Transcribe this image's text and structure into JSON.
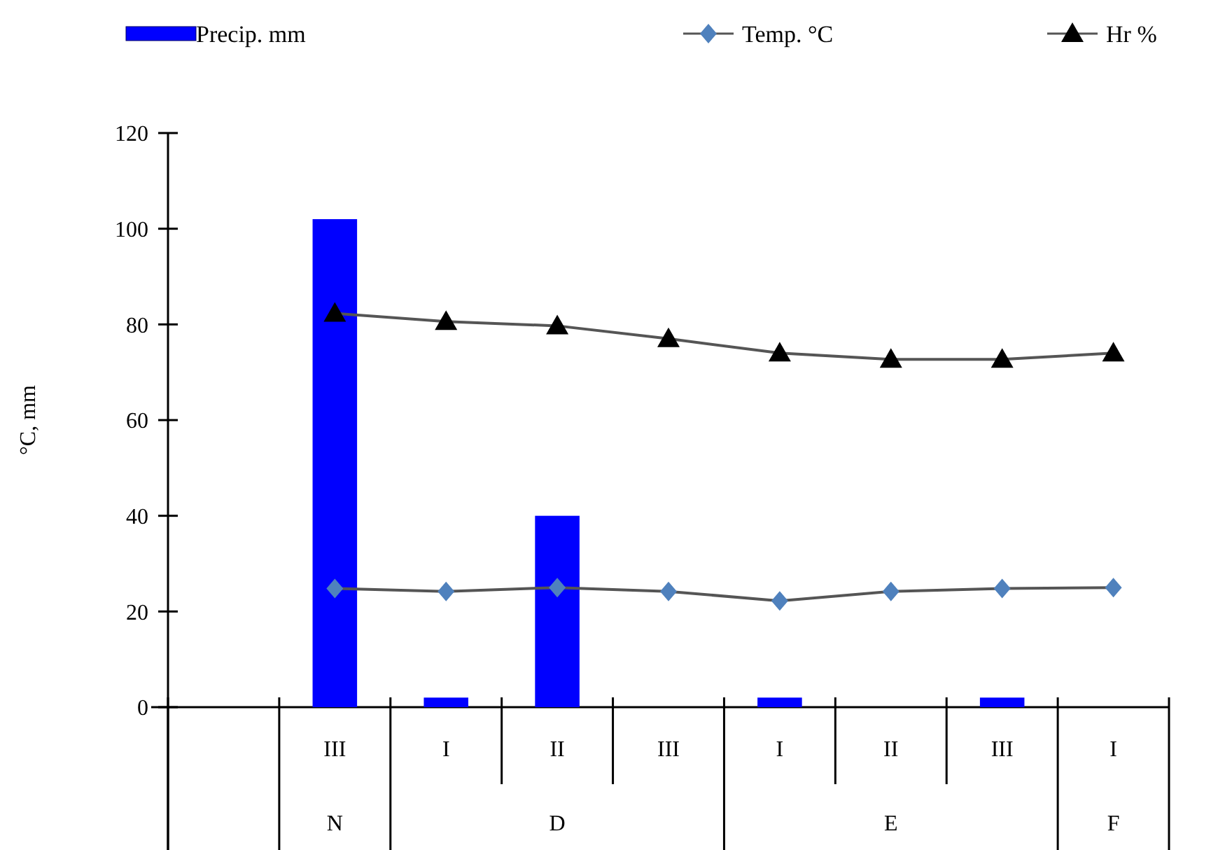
{
  "chart_data": {
    "type": "bar",
    "ylabel": "°C, mm",
    "categories": [
      null,
      "III",
      "I",
      "II",
      "III",
      "I",
      "II",
      "III",
      "I"
    ],
    "series": [
      {
        "name": "Precip. mm",
        "color": "#0000ff",
        "values": [
          null,
          102,
          2,
          40,
          0,
          2,
          0,
          2,
          0
        ]
      },
      {
        "name": "Temp. °C",
        "type": "line",
        "color": "#4f81bd",
        "marker": "diamond",
        "values": [
          null,
          24.8,
          24.2,
          25,
          24.2,
          22.2,
          24.2,
          24.8,
          25
        ]
      },
      {
        "name": "Hr %",
        "type": "line",
        "color": "#000000",
        "marker": "triangle",
        "values": [
          null,
          82.3,
          80.6,
          79.7,
          77,
          74,
          72.7,
          72.7,
          74
        ]
      }
    ],
    "annotations": [
      "N",
      "D",
      "E",
      "F"
    ],
    "ylim": [
      0,
      120
    ],
    "yticks": [
      0,
      20,
      40,
      60,
      80,
      100,
      120
    ],
    "legend": "top",
    "grid": false
  }
}
